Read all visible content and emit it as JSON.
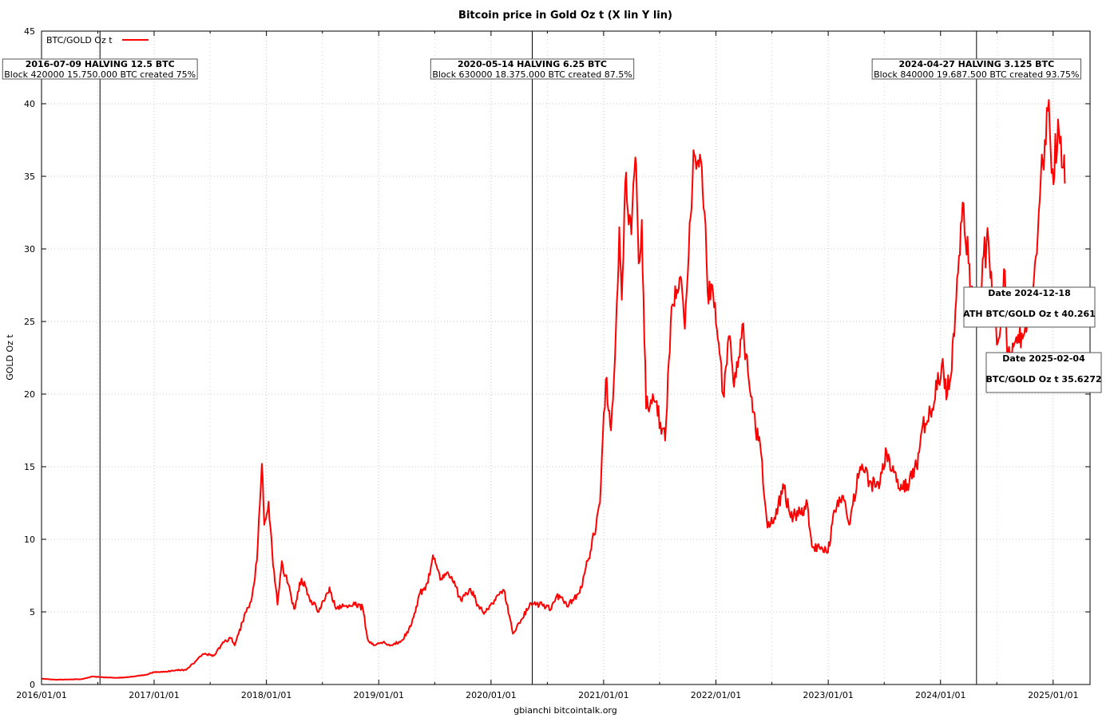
{
  "chart_data": {
    "type": "line",
    "title": "Bitcoin price in Gold Oz t (X lin Y lin)",
    "xlabel": "gbianchi bitcointalk.org",
    "ylabel": "GOLD Oz t",
    "ylim": [
      0,
      45
    ],
    "xlim": [
      "2016-01-01",
      "2025-05-01"
    ],
    "yticks": [
      0,
      5,
      10,
      15,
      20,
      25,
      30,
      35,
      40,
      45
    ],
    "xticks": [
      "2016/01/01",
      "2017/01/01",
      "2018/01/01",
      "2019/01/01",
      "2020/01/01",
      "2021/01/01",
      "2022/01/01",
      "2023/01/01",
      "2024/01/01",
      "2025/01/01"
    ],
    "grid": true,
    "legend_position": "top-left",
    "colors": {
      "series": "#ff0000",
      "axis": "#000000",
      "grid": "#c8c8c8"
    },
    "series": [
      {
        "name": "BTC/GOLD Oz t",
        "points": [
          [
            "2016-01-01",
            0.4
          ],
          [
            "2016-02-15",
            0.33
          ],
          [
            "2016-04-01",
            0.34
          ],
          [
            "2016-05-15",
            0.38
          ],
          [
            "2016-06-15",
            0.55
          ],
          [
            "2016-07-15",
            0.5
          ],
          [
            "2016-09-01",
            0.45
          ],
          [
            "2016-10-15",
            0.52
          ],
          [
            "2016-12-01",
            0.65
          ],
          [
            "2017-01-01",
            0.85
          ],
          [
            "2017-02-15",
            0.9
          ],
          [
            "2017-03-15",
            1.0
          ],
          [
            "2017-04-15",
            1.0
          ],
          [
            "2017-05-15",
            1.6
          ],
          [
            "2017-06-10",
            2.1
          ],
          [
            "2017-07-15",
            2.0
          ],
          [
            "2017-08-15",
            2.9
          ],
          [
            "2017-09-10",
            3.2
          ],
          [
            "2017-09-20",
            2.7
          ],
          [
            "2017-10-15",
            4.3
          ],
          [
            "2017-11-15",
            6.0
          ],
          [
            "2017-12-01",
            8.5
          ],
          [
            "2017-12-17",
            15.2
          ],
          [
            "2017-12-25",
            11.0
          ],
          [
            "2018-01-08",
            12.6
          ],
          [
            "2018-01-20",
            9.0
          ],
          [
            "2018-02-06",
            5.5
          ],
          [
            "2018-02-20",
            8.5
          ],
          [
            "2018-03-10",
            7.0
          ],
          [
            "2018-04-01",
            5.2
          ],
          [
            "2018-04-25",
            7.3
          ],
          [
            "2018-05-20",
            6.0
          ],
          [
            "2018-06-20",
            5.0
          ],
          [
            "2018-07-25",
            6.7
          ],
          [
            "2018-08-15",
            5.2
          ],
          [
            "2018-09-15",
            5.4
          ],
          [
            "2018-10-15",
            5.5
          ],
          [
            "2018-11-10",
            5.3
          ],
          [
            "2018-11-25",
            3.2
          ],
          [
            "2018-12-15",
            2.7
          ],
          [
            "2019-01-15",
            2.9
          ],
          [
            "2019-02-15",
            2.7
          ],
          [
            "2019-03-15",
            3.0
          ],
          [
            "2019-04-15",
            4.0
          ],
          [
            "2019-05-15",
            6.3
          ],
          [
            "2019-06-10",
            7.0
          ],
          [
            "2019-06-26",
            8.9
          ],
          [
            "2019-07-20",
            7.2
          ],
          [
            "2019-08-10",
            7.7
          ],
          [
            "2019-09-01",
            7.0
          ],
          [
            "2019-09-25",
            5.8
          ],
          [
            "2019-10-26",
            6.6
          ],
          [
            "2019-11-25",
            5.2
          ],
          [
            "2019-12-15",
            5.0
          ],
          [
            "2020-01-15",
            5.8
          ],
          [
            "2020-02-12",
            6.5
          ],
          [
            "2020-03-12",
            3.5
          ],
          [
            "2020-04-10",
            4.5
          ],
          [
            "2020-05-10",
            5.6
          ],
          [
            "2020-06-15",
            5.5
          ],
          [
            "2020-07-15",
            5.2
          ],
          [
            "2020-08-01",
            6.1
          ],
          [
            "2020-09-10",
            5.5
          ],
          [
            "2020-10-15",
            6.3
          ],
          [
            "2020-11-10",
            8.5
          ],
          [
            "2020-12-01",
            10.3
          ],
          [
            "2020-12-20",
            12.5
          ],
          [
            "2021-01-08",
            21.0
          ],
          [
            "2021-01-25",
            17.5
          ],
          [
            "2021-02-10",
            24.5
          ],
          [
            "2021-02-21",
            31.5
          ],
          [
            "2021-03-01",
            26.5
          ],
          [
            "2021-03-12",
            34.5
          ],
          [
            "2021-04-01",
            31.0
          ],
          [
            "2021-04-14",
            36.3
          ],
          [
            "2021-04-25",
            29.0
          ],
          [
            "2021-05-05",
            32.0
          ],
          [
            "2021-05-19",
            19.0
          ],
          [
            "2021-06-10",
            20.0
          ],
          [
            "2021-07-20",
            16.8
          ],
          [
            "2021-08-10",
            26.0
          ],
          [
            "2021-09-05",
            28.0
          ],
          [
            "2021-09-22",
            24.5
          ],
          [
            "2021-10-20",
            36.8
          ],
          [
            "2021-11-10",
            36.5
          ],
          [
            "2021-11-25",
            32.5
          ],
          [
            "2021-12-05",
            27.0
          ],
          [
            "2021-12-20",
            27.5
          ],
          [
            "2022-01-10",
            23.5
          ],
          [
            "2022-01-24",
            20.0
          ],
          [
            "2022-02-15",
            24.0
          ],
          [
            "2022-03-01",
            20.5
          ],
          [
            "2022-03-28",
            24.8
          ],
          [
            "2022-04-15",
            21.5
          ],
          [
            "2022-05-10",
            17.5
          ],
          [
            "2022-05-25",
            16.5
          ],
          [
            "2022-06-18",
            10.8
          ],
          [
            "2022-07-10",
            11.5
          ],
          [
            "2022-08-10",
            13.5
          ],
          [
            "2022-09-01",
            11.5
          ],
          [
            "2022-10-01",
            11.8
          ],
          [
            "2022-10-25",
            12.5
          ],
          [
            "2022-11-09",
            9.5
          ],
          [
            "2022-12-31",
            9.1
          ],
          [
            "2023-01-20",
            12.0
          ],
          [
            "2023-02-15",
            13.0
          ],
          [
            "2023-03-10",
            11.0
          ],
          [
            "2023-04-15",
            15.0
          ],
          [
            "2023-05-15",
            14.0
          ],
          [
            "2023-06-15",
            13.5
          ],
          [
            "2023-07-10",
            16.0
          ],
          [
            "2023-08-17",
            13.5
          ],
          [
            "2023-09-15",
            13.8
          ],
          [
            "2023-10-15",
            15.0
          ],
          [
            "2023-11-01",
            17.5
          ],
          [
            "2023-12-05",
            19.0
          ],
          [
            "2024-01-05",
            22.0
          ],
          [
            "2024-01-23",
            20.0
          ],
          [
            "2024-02-15",
            24.0
          ],
          [
            "2024-03-13",
            33.2
          ],
          [
            "2024-04-01",
            29.0
          ],
          [
            "2024-04-15",
            26.0
          ],
          [
            "2024-05-01",
            25.5
          ],
          [
            "2024-05-20",
            29.5
          ],
          [
            "2024-06-05",
            30.5
          ],
          [
            "2024-07-05",
            23.5
          ],
          [
            "2024-07-28",
            28.5
          ],
          [
            "2024-08-05",
            22.5
          ],
          [
            "2024-09-06",
            23.5
          ],
          [
            "2024-10-15",
            25.5
          ],
          [
            "2024-11-06",
            29.5
          ],
          [
            "2024-11-22",
            35.0
          ],
          [
            "2024-12-05",
            37.5
          ],
          [
            "2024-12-18",
            40.26
          ],
          [
            "2024-12-30",
            35.5
          ],
          [
            "2025-01-20",
            38.0
          ],
          [
            "2025-02-04",
            35.63
          ],
          [
            "2025-02-08",
            34.5
          ]
        ]
      }
    ],
    "halvings": [
      {
        "date": "2016-07-09",
        "title": "2016-07-09 HALVING 12.5 BTC",
        "subtitle": "Block 420000 15.750.000 BTC created 75%"
      },
      {
        "date": "2020-05-14",
        "title": "2020-05-14 HALVING 6.25 BTC",
        "subtitle": "Block 630000 18.375.000 BTC created 87.5%"
      },
      {
        "date": "2024-04-27",
        "title": "2024-04-27 HALVING 3.125 BTC",
        "subtitle": "Block 840000 19.687.500 BTC created 93.75%"
      }
    ],
    "annotations": [
      {
        "line1": "Date 2024-12-18",
        "line2": "ATH BTC/GOLD Oz t 40.261"
      },
      {
        "line1": "Date 2025-02-04",
        "line2": "BTC/GOLD Oz t 35.6272"
      }
    ]
  }
}
